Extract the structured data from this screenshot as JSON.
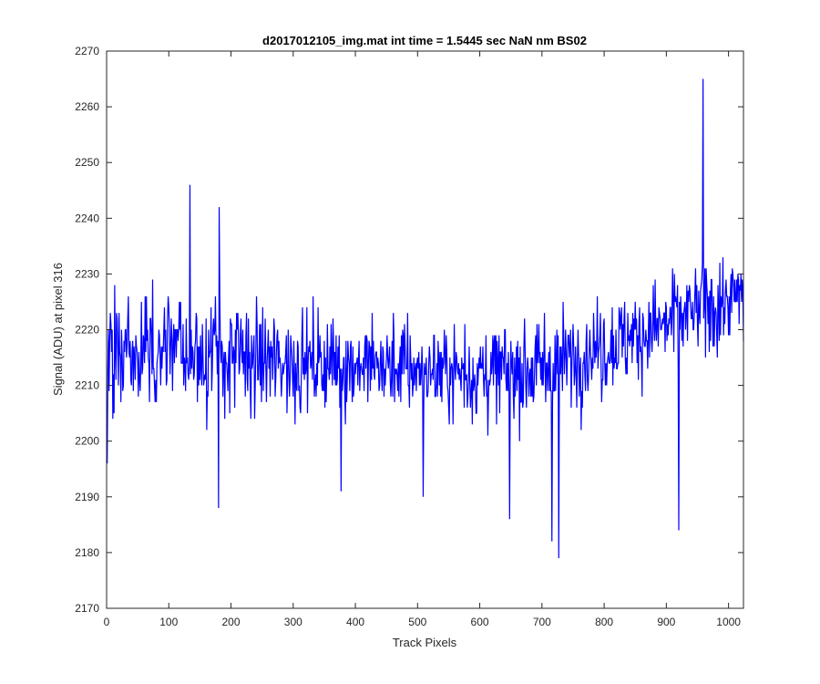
{
  "chart_data": {
    "type": "line",
    "title": "d2017012105_img.mat int time = 1.5445 sec  NaN nm BS02",
    "xlabel": "Track Pixels",
    "ylabel": "Signal (ADU) at pixel 316",
    "xlim": [
      0,
      1024
    ],
    "ylim": [
      2170,
      2270
    ],
    "xticks": [
      0,
      100,
      200,
      300,
      400,
      500,
      600,
      700,
      800,
      900,
      1000
    ],
    "yticks": [
      2170,
      2180,
      2190,
      2200,
      2210,
      2220,
      2230,
      2240,
      2250,
      2260,
      2270
    ],
    "grid": false,
    "line_color": "#0000ff",
    "series": [
      {
        "x_start": 1,
        "x_step": 1,
        "noise_seed": 17,
        "envelope": [
          [
            0,
            2215,
            8
          ],
          [
            100,
            2217,
            7
          ],
          [
            200,
            2215,
            7
          ],
          [
            300,
            2214,
            6
          ],
          [
            400,
            2214,
            6
          ],
          [
            500,
            2213,
            6
          ],
          [
            600,
            2212,
            6
          ],
          [
            700,
            2213,
            6
          ],
          [
            800,
            2217,
            6
          ],
          [
            900,
            2221,
            6
          ],
          [
            1024,
            2226,
            6
          ]
        ],
        "extremes": [
          [
            1,
            2196
          ],
          [
            134,
            2246
          ],
          [
            180,
            2188
          ],
          [
            181,
            2242
          ],
          [
            377,
            2191
          ],
          [
            509,
            2190
          ],
          [
            648,
            2186
          ],
          [
            716,
            2182
          ],
          [
            727,
            2179
          ],
          [
            920,
            2184
          ],
          [
            959,
            2265
          ],
          [
            958,
            2232
          ],
          [
            960,
            2222
          ]
        ]
      }
    ]
  }
}
